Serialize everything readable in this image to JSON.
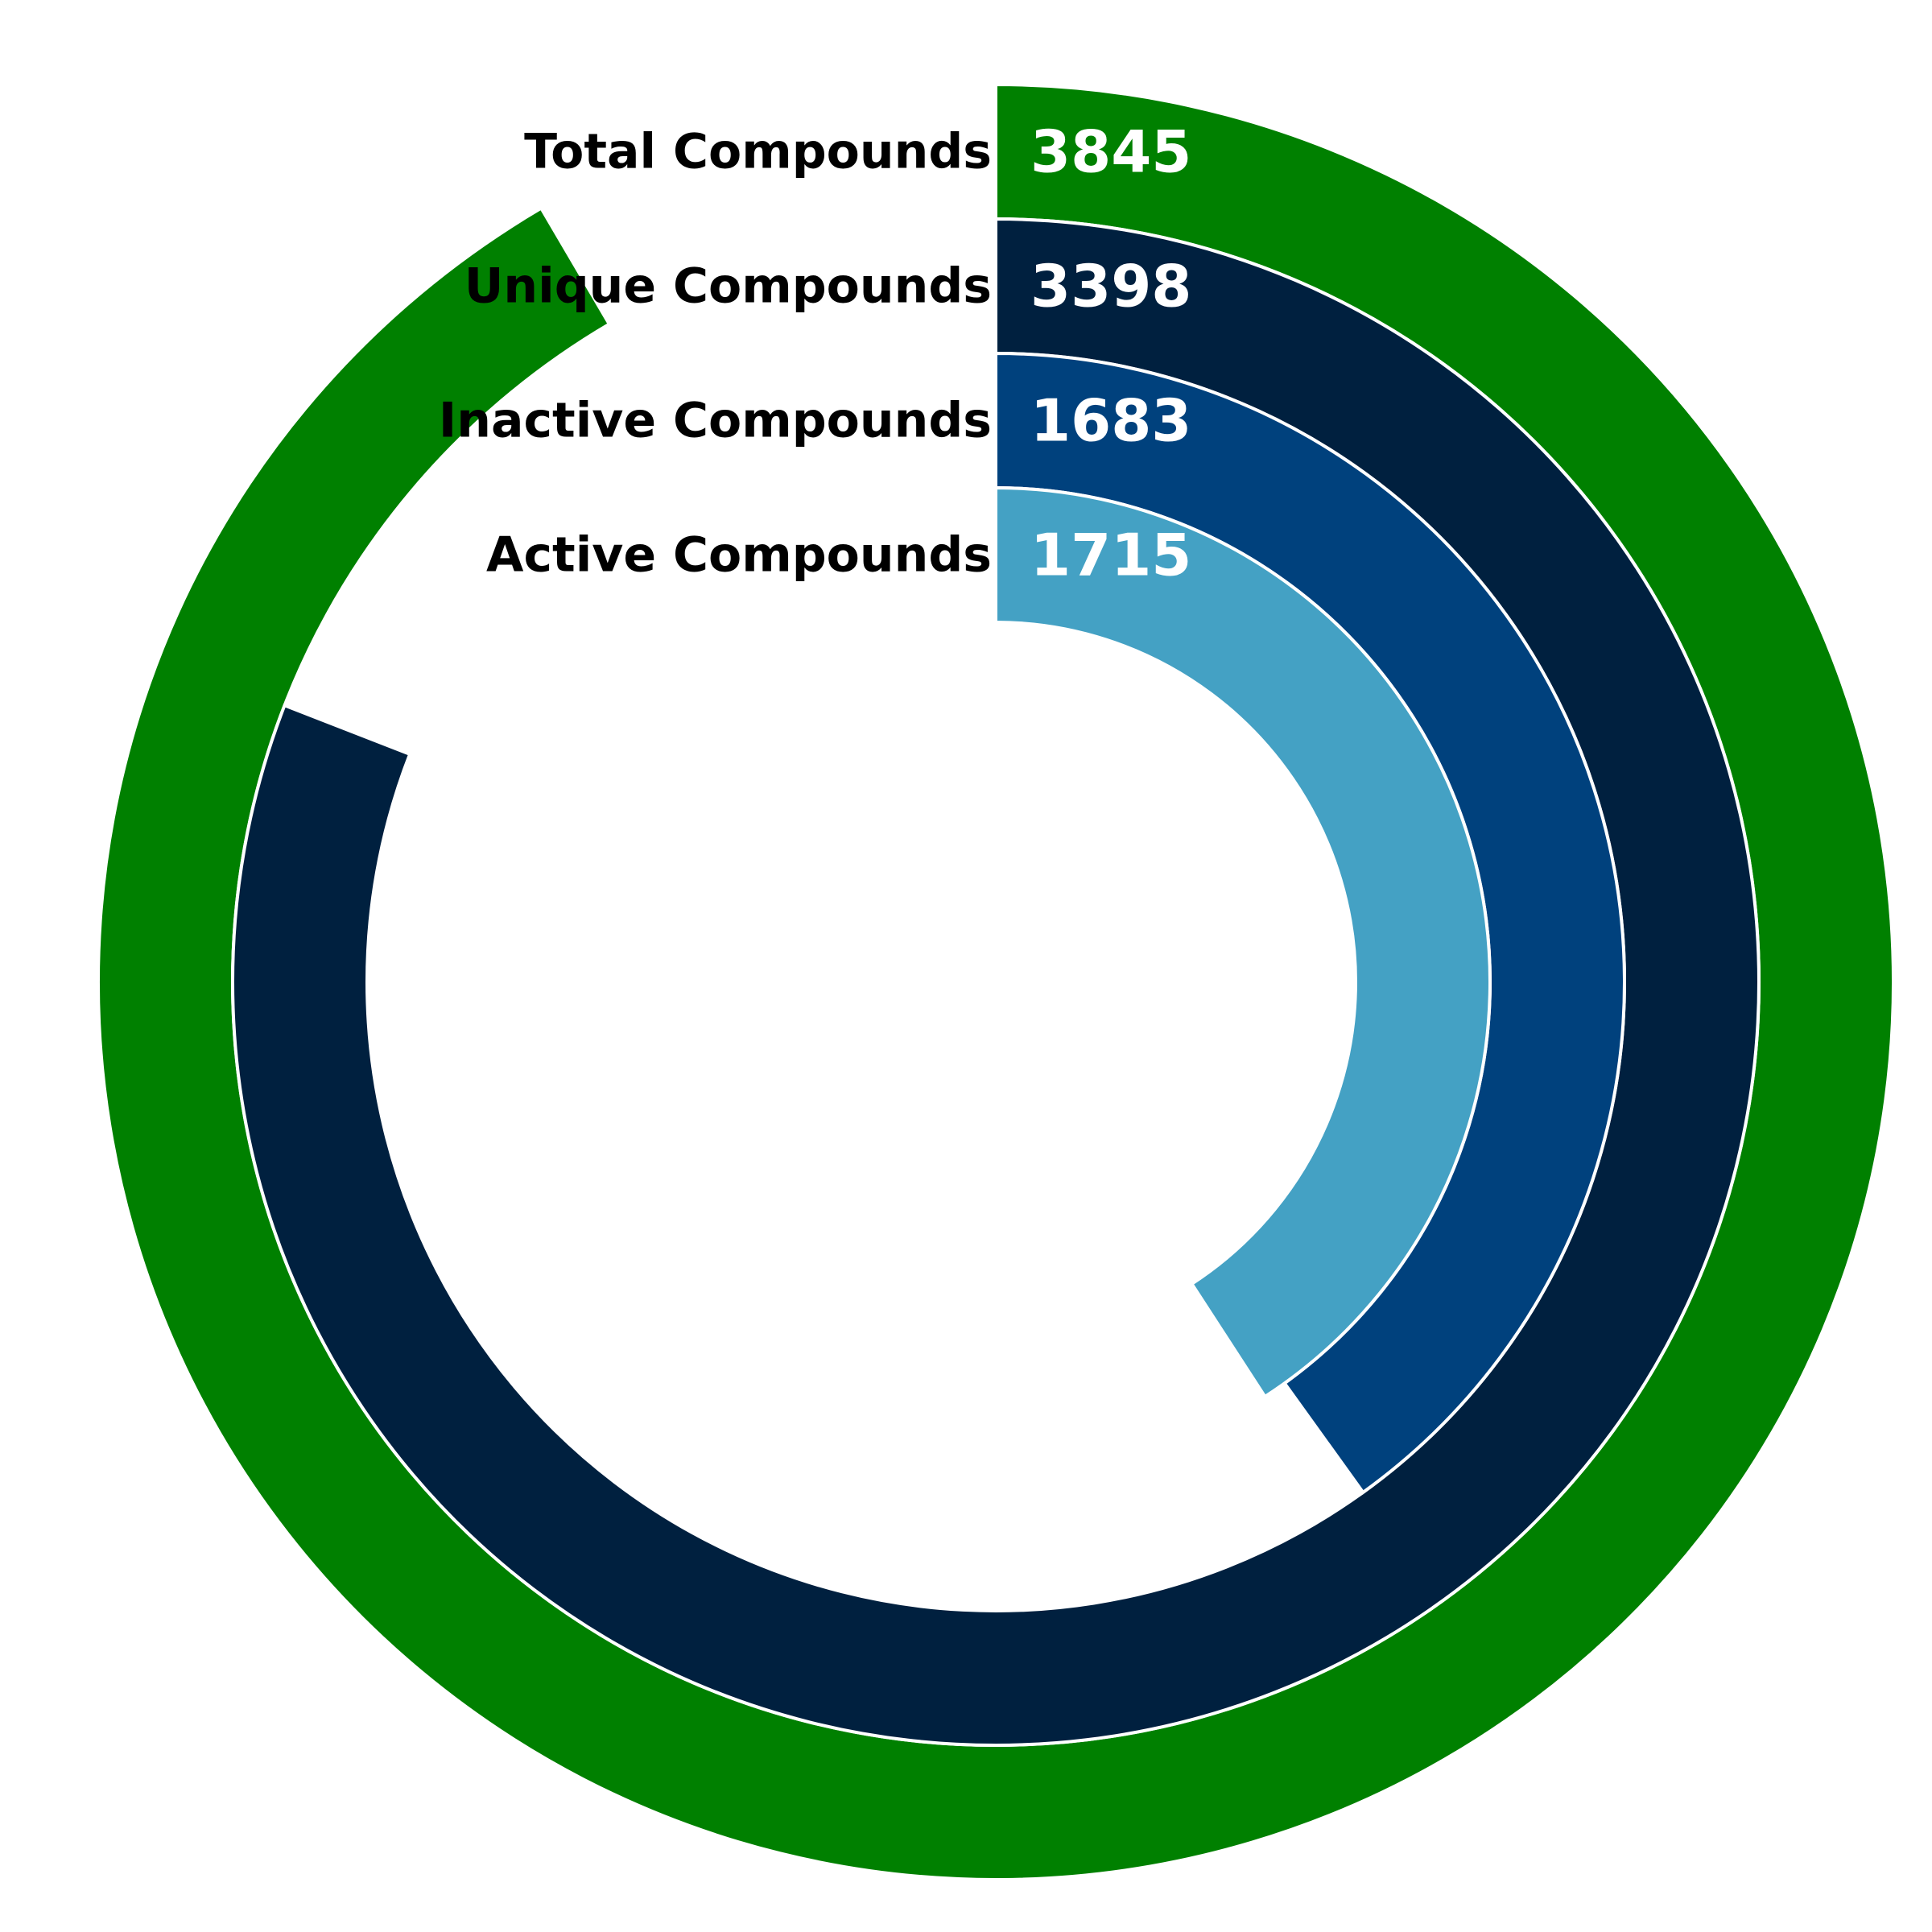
{
  "chart_data": {
    "type": "radial-bar",
    "title": "",
    "max_value": 4200,
    "series": [
      {
        "name": "Total Compounds",
        "value": 3845,
        "color": "#008000"
      },
      {
        "name": "Unique Compounds",
        "value": 3398,
        "color": "#00203f"
      },
      {
        "name": "Inactive Compounds",
        "value": 1683,
        "color": "#00417d"
      },
      {
        "name": "Active Compounds",
        "value": 1715,
        "color": "#44a1c4"
      }
    ],
    "grid": false,
    "legend": "none"
  }
}
